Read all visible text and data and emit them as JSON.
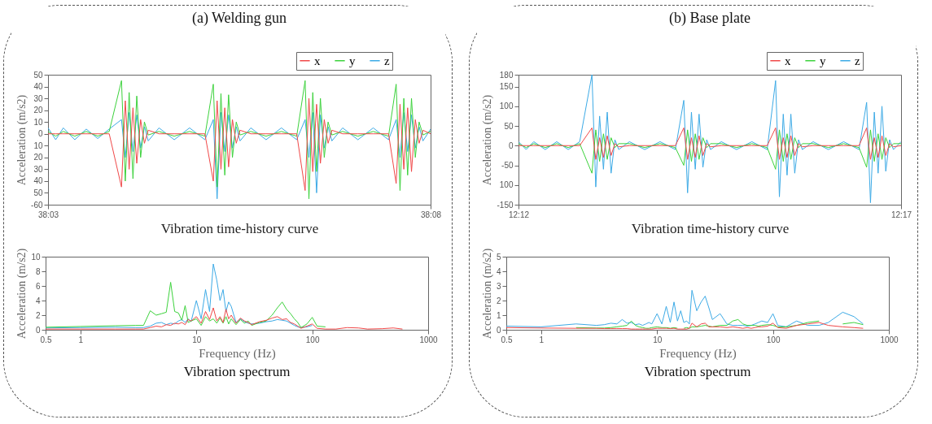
{
  "chart_data": [
    {
      "type": "line",
      "title": "(a) Welding gun",
      "xlabel": "Vibration time-history curve",
      "ylabel": "Acceleration  (m/s2)",
      "legend": "top right",
      "x": [
        38.05,
        38.05167,
        38.05333,
        38.05583,
        38.05833,
        38.06083,
        38.06333,
        38.066,
        38.06683,
        38.06767,
        38.0685,
        38.06933,
        38.07017,
        38.071,
        38.07183,
        38.07417,
        38.0775,
        38.08083,
        38.08417,
        38.086,
        38.08683,
        38.08767,
        38.0885,
        38.08933,
        38.09017,
        38.091,
        38.09183,
        38.09417,
        38.0975,
        38.10083,
        38.10417,
        38.106,
        38.10683,
        38.10767,
        38.1085,
        38.10933,
        38.11017,
        38.111,
        38.11183,
        38.11417,
        38.1175,
        38.12083,
        38.12417,
        38.12583,
        38.12667,
        38.1275,
        38.12833,
        38.12917,
        38.13,
        38.13083,
        38.13167,
        38.13333
      ],
      "xlim": [
        38.05,
        38.13333
      ],
      "xticks": [
        {
          "value": 38.05,
          "label": "38:03"
        },
        {
          "value": 38.13333,
          "label": "38:08"
        }
      ],
      "ylim": [
        -60,
        50
      ],
      "yticks": [
        50,
        40,
        30,
        20,
        10,
        0,
        {
          "value": -10,
          "label": "10"
        },
        {
          "value": -20,
          "label": "20"
        },
        {
          "value": -30,
          "label": "30"
        },
        {
          "value": -40,
          "label": "40"
        },
        {
          "value": -50,
          "label": "50"
        },
        -60
      ],
      "series": [
        {
          "name": "x",
          "color": "#f04848",
          "values": [
            0,
            0,
            0,
            0,
            0,
            0,
            0,
            -45,
            28,
            -30,
            22,
            -25,
            12,
            -8,
            3,
            0,
            0,
            0,
            0,
            -40,
            28,
            -30,
            22,
            -28,
            12,
            -8,
            3,
            0,
            0,
            0,
            0,
            -48,
            30,
            -32,
            25,
            -25,
            12,
            -8,
            3,
            0,
            0,
            0,
            0,
            -42,
            25,
            -30,
            22,
            -32,
            12,
            -8,
            3,
            0
          ]
        },
        {
          "name": "y",
          "color": "#3cd23c",
          "values": [
            2,
            -2,
            2,
            -2,
            2,
            -2,
            2,
            45,
            -40,
            35,
            -38,
            32,
            -20,
            10,
            -1,
            2,
            -2,
            2,
            -2,
            42,
            -45,
            34,
            -35,
            33,
            -20,
            10,
            -1,
            2,
            -2,
            2,
            -2,
            45,
            -55,
            35,
            -32,
            30,
            -20,
            10,
            -1,
            2,
            -2,
            2,
            -2,
            42,
            -48,
            30,
            -35,
            30,
            -20,
            10,
            -1,
            2
          ]
        },
        {
          "name": "z",
          "color": "#3caae6",
          "values": [
            5,
            -5,
            5,
            -5,
            4,
            -4,
            4,
            12,
            -20,
            18,
            -15,
            16,
            -12,
            6,
            -6,
            5,
            -5,
            5,
            -5,
            12,
            -55,
            18,
            -15,
            16,
            -12,
            6,
            -6,
            5,
            -5,
            5,
            -5,
            12,
            -20,
            18,
            -50,
            16,
            -12,
            6,
            -6,
            5,
            -5,
            5,
            -5,
            12,
            -20,
            18,
            -15,
            16,
            -12,
            6,
            -6,
            4
          ]
        }
      ]
    },
    {
      "type": "line",
      "xlabel": "Frequency (Hz)",
      "ylabel": "Acceleration  (m/s2)",
      "annotations": [
        "Vibration spectrum"
      ],
      "log": "x",
      "x": [
        0.5,
        1,
        2,
        3,
        3.5,
        4,
        4.5,
        5,
        5.5,
        6,
        6.5,
        7,
        7.5,
        8,
        8.5,
        9,
        10,
        11,
        12,
        13,
        14,
        15,
        16,
        17,
        18,
        19,
        20,
        22,
        24,
        26,
        28,
        30,
        35,
        40,
        45,
        50,
        55,
        60,
        65,
        70,
        75,
        80,
        90,
        100,
        110,
        130,
        160,
        200,
        250,
        300,
        400,
        500,
        600
      ],
      "xlim": [
        0.5,
        1000
      ],
      "xticks": [
        0.5,
        1,
        10,
        100,
        1000
      ],
      "ylim": [
        0,
        10
      ],
      "yticks": [
        0,
        2,
        4,
        6,
        8,
        10
      ],
      "series": [
        {
          "color": "#f04848",
          "values": [
            0.1,
            0.1,
            0.1,
            0.1,
            0.1,
            0.3,
            0.5,
            0.4,
            0.7,
            0.6,
            0.9,
            0.8,
            1.0,
            0.7,
            1.4,
            1.2,
            1.8,
            0.9,
            2.5,
            1.4,
            3.0,
            1.2,
            1.8,
            1.0,
            2.8,
            1.5,
            2.0,
            0.9,
            1.6,
            1.2,
            1.0,
            0.7,
            1.1,
            1.3,
            1.6,
            1.8,
            1.4,
            1.5,
            1.0,
            0.8,
            0.5,
            0.2,
            0.5,
            0.8,
            0.2,
            0.1,
            0.1,
            0.3,
            0.25,
            0.1,
            0.15,
            0.25,
            0.1
          ]
        },
        {
          "color": "#3cd23c",
          "values": [
            0.35,
            0.45,
            0.55,
            0.6,
            0.6,
            2.6,
            2.0,
            2.2,
            2.4,
            6.5,
            2.5,
            2.3,
            1.3,
            3.3,
            1.0,
            1.2,
            1.5,
            0.6,
            1.8,
            1.2,
            1.5,
            0.9,
            1.6,
            0.9,
            1.8,
            0.8,
            1.5,
            0.7,
            1.4,
            0.9,
            1.2,
            0.6,
            1.0,
            1.2,
            2.0,
            3.0,
            3.8,
            2.8,
            2.2,
            1.5,
            1.0,
            0.3,
            0.8,
            1.7,
            0.5,
            0.4,
            null,
            null,
            null,
            null,
            null,
            null,
            null
          ]
        },
        {
          "color": "#3caae6",
          "values": [
            0.25,
            0.3,
            0.35,
            0.3,
            0.3,
            0.5,
            0.9,
            1.0,
            0.7,
            0.9,
            0.8,
            1.2,
            1.4,
            1.0,
            1.5,
            1.1,
            4.0,
            1.5,
            5.5,
            2.5,
            9.0,
            6.8,
            4.0,
            5.5,
            2.5,
            3.8,
            3.2,
            1.0,
            1.5,
            1.1,
            0.9,
            0.8,
            0.9,
            1.1,
            1.2,
            1.4,
            1.3,
            1.2,
            0.9,
            0.6,
            0.4,
            0.3,
            0.4,
            0.6,
            null,
            null,
            null,
            null,
            null,
            null,
            null,
            null,
            null
          ]
        }
      ]
    },
    {
      "type": "line",
      "title": "(b) Base plate",
      "xlabel": "Vibration time-history curve",
      "ylabel": "Acceleration  (m/s2)",
      "legend": "top right",
      "x": [
        12.2,
        12.20167,
        12.20333,
        12.20583,
        12.20833,
        12.21083,
        12.21333,
        12.216,
        12.21683,
        12.21767,
        12.2185,
        12.21933,
        12.22017,
        12.221,
        12.22183,
        12.22417,
        12.2275,
        12.23083,
        12.23417,
        12.236,
        12.23683,
        12.23767,
        12.2385,
        12.23933,
        12.24017,
        12.241,
        12.24183,
        12.24417,
        12.2475,
        12.25083,
        12.25417,
        12.256,
        12.25683,
        12.25767,
        12.2585,
        12.25933,
        12.26017,
        12.261,
        12.26183,
        12.26417,
        12.2675,
        12.27083,
        12.27417,
        12.27583,
        12.27667,
        12.2775,
        12.27833,
        12.27917,
        12.28,
        12.28083,
        12.28167,
        12.28333
      ],
      "xlim": [
        12.2,
        12.28333
      ],
      "xticks": [
        {
          "value": 12.2,
          "label": "12:12"
        },
        {
          "value": 12.28333,
          "label": "12:17"
        }
      ],
      "ylim": [
        -150,
        180
      ],
      "yticks": [
        180,
        150,
        100,
        50,
        0,
        -50,
        {
          "value": -100,
          "label": "100"
        },
        -150
      ],
      "series": [
        {
          "name": "x",
          "color": "#f04848",
          "values": [
            0,
            0,
            0,
            0,
            0,
            0,
            0,
            45,
            -35,
            20,
            -30,
            25,
            -25,
            5,
            -3,
            0,
            0,
            0,
            0,
            45,
            -35,
            20,
            -30,
            25,
            -25,
            5,
            -3,
            0,
            0,
            0,
            0,
            45,
            -35,
            20,
            -30,
            25,
            -25,
            5,
            -3,
            0,
            0,
            0,
            0,
            45,
            -35,
            20,
            -30,
            25,
            -25,
            5,
            -3,
            0
          ]
        },
        {
          "name": "y",
          "color": "#3cd23c",
          "values": [
            5,
            -5,
            5,
            -5,
            5,
            -5,
            5,
            -70,
            40,
            -40,
            30,
            -35,
            20,
            -5,
            5,
            5,
            -5,
            5,
            -5,
            -50,
            40,
            -40,
            30,
            -35,
            20,
            -5,
            5,
            5,
            -5,
            5,
            -5,
            -60,
            40,
            -40,
            30,
            -35,
            20,
            -5,
            5,
            5,
            -5,
            5,
            -5,
            -55,
            40,
            -40,
            30,
            -35,
            20,
            -5,
            5,
            5
          ]
        },
        {
          "name": "z",
          "color": "#3caae6",
          "values": [
            10,
            -10,
            10,
            -10,
            10,
            -10,
            10,
            180,
            -105,
            75,
            -60,
            85,
            -70,
            15,
            -10,
            10,
            -10,
            10,
            -10,
            115,
            -120,
            85,
            -60,
            80,
            -55,
            15,
            -10,
            10,
            -10,
            10,
            -10,
            165,
            -130,
            80,
            -75,
            80,
            -70,
            15,
            -10,
            10,
            -10,
            10,
            -10,
            110,
            -145,
            85,
            -70,
            100,
            -65,
            15,
            -10,
            10
          ]
        }
      ]
    },
    {
      "type": "line",
      "xlabel": "Frequency (Hz)",
      "ylabel": "Acceleration  (m/s2)",
      "annotations": [
        "Vibration spectrum"
      ],
      "log": "x",
      "x": [
        0.5,
        1,
        2,
        3,
        3.5,
        4,
        4.5,
        5,
        5.5,
        6,
        6.5,
        7,
        7.5,
        8,
        8.5,
        9,
        10,
        11,
        12,
        13,
        14,
        15,
        16,
        17,
        18,
        19,
        20,
        22,
        24,
        26,
        28,
        30,
        35,
        40,
        45,
        50,
        55,
        60,
        65,
        70,
        75,
        80,
        90,
        100,
        110,
        130,
        160,
        200,
        250,
        300,
        400,
        500,
        600
      ],
      "xlim": [
        0.5,
        1000
      ],
      "xticks": [
        0.5,
        1,
        10,
        100,
        1000
      ],
      "ylim": [
        0,
        5
      ],
      "yticks": [
        0,
        1,
        2,
        3,
        4,
        5
      ],
      "series": [
        {
          "color": "#f04848",
          "values": [
            0.15,
            0.12,
            0.1,
            0.1,
            0.08,
            0.08,
            0.08,
            0.08,
            0.08,
            0.05,
            0.05,
            0.05,
            0.05,
            0.05,
            0.05,
            0.05,
            0.1,
            0.1,
            0.1,
            0.08,
            0.1,
            0.05,
            0.05,
            0.05,
            0.05,
            0.1,
            0.45,
            0.2,
            0.4,
            0.45,
            0.2,
            0.2,
            0.2,
            0.15,
            0.2,
            0.15,
            0.1,
            0.15,
            0.1,
            0.15,
            0.2,
            0.2,
            0.25,
            0.45,
            0.15,
            0.1,
            0.3,
            0.4,
            0.5,
            0.3,
            0.2,
            0.15,
            0.1
          ]
        },
        {
          "color": "#3cd23c",
          "values": [
            null,
            null,
            0.15,
            0.12,
            0.12,
            0.15,
            0.2,
            0.25,
            0.3,
            0.6,
            0.3,
            0.2,
            0.15,
            0.1,
            0.1,
            0.15,
            0.2,
            0.15,
            0.15,
            0.1,
            0.15,
            0.1,
            null,
            0.1,
            0.15,
            0.1,
            0.2,
            0.2,
            0.25,
            0.3,
            0.25,
            0.2,
            0.3,
            0.3,
            0.6,
            0.7,
            0.4,
            0.3,
            0.3,
            0.3,
            0.25,
            0.3,
            0.35,
            0.3,
            0.2,
            0.2,
            0.3,
            0.5,
            0.6,
            null,
            0.4,
            0.5,
            0.35
          ]
        },
        {
          "color": "#3caae6",
          "values": [
            0.25,
            0.2,
            0.4,
            0.3,
            0.35,
            0.45,
            0.4,
            0.7,
            0.45,
            0.5,
            0.35,
            0.4,
            0.3,
            0.4,
            0.5,
            0.4,
            1.1,
            0.4,
            1.6,
            0.5,
            1.9,
            0.6,
            1.3,
            0.5,
            0.6,
            0.4,
            2.7,
            1.3,
            1.9,
            2.3,
            1.5,
            0.7,
            1.1,
            0.4,
            0.3,
            0.3,
            0.3,
            0.25,
            0.3,
            0.4,
            0.5,
            0.6,
            0.5,
            1.1,
            0.3,
            0.2,
            0.6,
            0.3,
            0.3,
            0.5,
            1.2,
            0.9,
            0.4
          ]
        }
      ]
    }
  ]
}
